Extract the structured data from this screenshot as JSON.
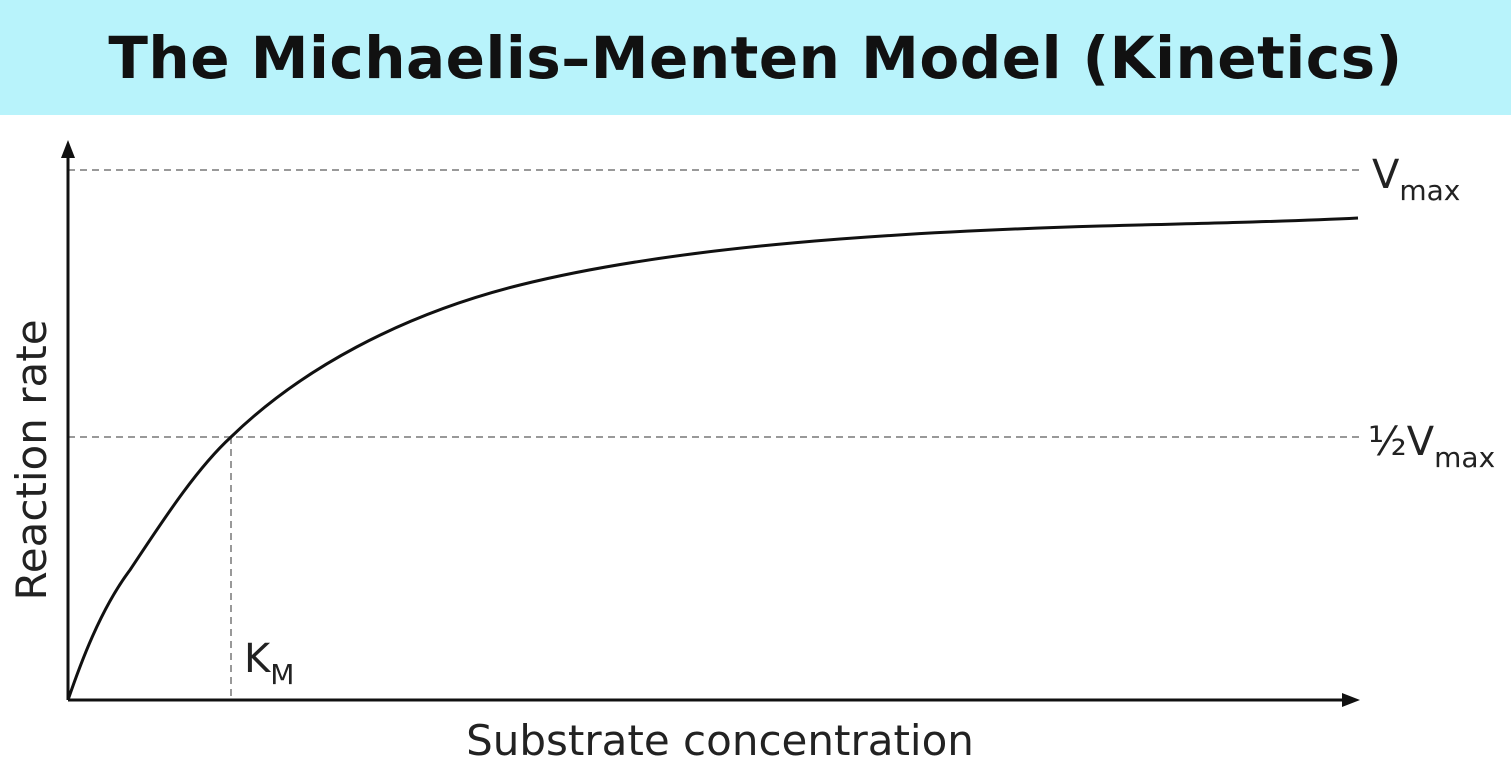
{
  "header": {
    "title": "The Michaelis–Menten Model (Kinetics)"
  },
  "diagram": {
    "y_axis_label": "Reaction rate",
    "x_axis_label": "Substrate concentration",
    "vmax_label": {
      "main": "V",
      "sub": "max"
    },
    "half_vmax_label": {
      "main": "½V",
      "sub": "max"
    },
    "km_label": {
      "main": "K",
      "sub": "M"
    }
  }
}
